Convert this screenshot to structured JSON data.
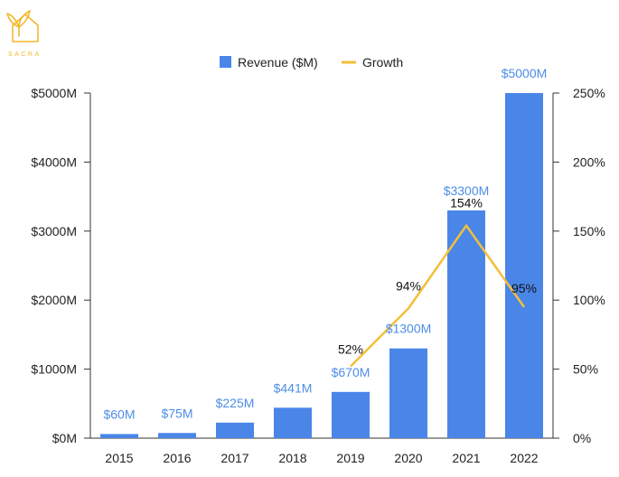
{
  "logo": {
    "text": "SACRA"
  },
  "chart_data": {
    "type": "bar",
    "categories": [
      "2015",
      "2016",
      "2017",
      "2018",
      "2019",
      "2020",
      "2021",
      "2022"
    ],
    "series": [
      {
        "name": "Revenue ($M)",
        "type": "bar",
        "axis": "left",
        "color": "#4a86e8",
        "values": [
          60,
          75,
          225,
          441,
          670,
          1300,
          3300,
          5000
        ],
        "labels": [
          "$60M",
          "$75M",
          "$225M",
          "$441M",
          "$670M",
          "$1300M",
          "$3300M",
          "$5000M"
        ]
      },
      {
        "name": "Growth",
        "type": "line",
        "axis": "right",
        "color": "#f4bf3a",
        "values": [
          null,
          null,
          null,
          null,
          52,
          94,
          154,
          95
        ],
        "labels": [
          "",
          "",
          "",
          "",
          "52%",
          "94%",
          "154%",
          "95%"
        ]
      }
    ],
    "y_left": {
      "min": 0,
      "max": 5000,
      "ticks": [
        0,
        1000,
        2000,
        3000,
        4000,
        5000
      ],
      "tick_labels": [
        "$0M",
        "$1000M",
        "$2000M",
        "$3000M",
        "$4000M",
        "$5000M"
      ]
    },
    "y_right": {
      "min": 0,
      "max": 250,
      "ticks": [
        0,
        50,
        100,
        150,
        200,
        250
      ],
      "tick_labels": [
        "0%",
        "50%",
        "100%",
        "150%",
        "200%",
        "250%"
      ]
    },
    "legend": {
      "position": "top-center"
    },
    "grid": false
  }
}
